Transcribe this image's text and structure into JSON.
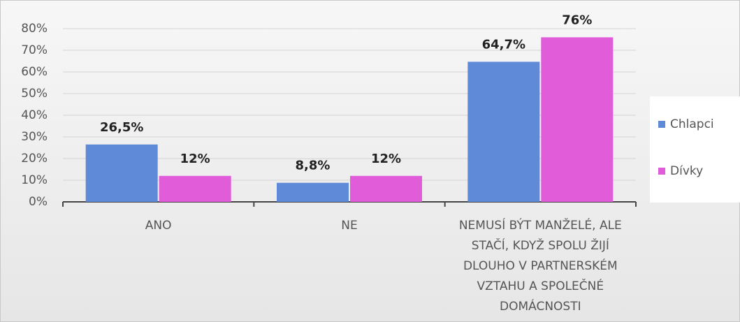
{
  "chart_data": {
    "type": "bar",
    "categories": [
      "ANO",
      "NE",
      "NEMUSÍ BÝT MANŽELÉ, ALE STAČÍ, KDYŽ SPOLU ŽIJÍ DLOUHO V PARTNERSKÉM VZTAHU A SPOLEČNÉ DOMÁCNOSTI"
    ],
    "series": [
      {
        "name": "Chlapci",
        "color": "#5f8ad8",
        "values": [
          26.5,
          8.8,
          64.7
        ],
        "value_labels": [
          "26,5%",
          "8,8%",
          "64,7%"
        ]
      },
      {
        "name": "Dívky",
        "color": "#e05cd8",
        "values": [
          12,
          12,
          76
        ],
        "value_labels": [
          "12%",
          "12%",
          "76%"
        ]
      }
    ],
    "ylim": [
      0,
      80
    ],
    "yticks": [
      {
        "value": 0,
        "label": "0%"
      },
      {
        "value": 10,
        "label": "10%"
      },
      {
        "value": 20,
        "label": "20%"
      },
      {
        "value": 30,
        "label": "30%"
      },
      {
        "value": 40,
        "label": "40%"
      },
      {
        "value": 50,
        "label": "50%"
      },
      {
        "value": 60,
        "label": "60%"
      },
      {
        "value": 70,
        "label": "70%"
      },
      {
        "value": 80,
        "label": "80%"
      }
    ],
    "grid": true,
    "legend": "right"
  }
}
